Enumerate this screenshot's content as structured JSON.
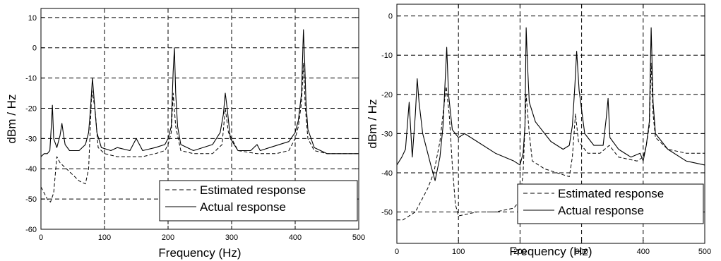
{
  "chart_data": [
    {
      "type": "line",
      "xlabel": "Frequency (Hz)",
      "ylabel": "dBm / Hz",
      "xlim": [
        0,
        500
      ],
      "ylim": [
        -60,
        13
      ],
      "xticks": [
        0,
        100,
        200,
        300,
        400,
        500
      ],
      "yticks": [
        10,
        0,
        -10,
        -20,
        -30,
        -40,
        -50,
        -60
      ],
      "grid": true,
      "legend_position": "bottom-right",
      "series": [
        {
          "name": "Estimated response",
          "style": "dashed",
          "x": [
            0,
            5,
            10,
            15,
            20,
            25,
            30,
            35,
            40,
            50,
            60,
            70,
            75,
            80,
            85,
            90,
            100,
            120,
            140,
            160,
            180,
            195,
            200,
            205,
            208,
            212,
            220,
            240,
            270,
            285,
            290,
            295,
            310,
            340,
            370,
            390,
            400,
            405,
            410,
            413,
            416,
            420,
            430,
            450,
            480,
            500
          ],
          "y": [
            -46,
            -48,
            -50,
            -51,
            -48,
            -36,
            -38,
            -39,
            -40,
            -42,
            -44,
            -45,
            -40,
            -14,
            -20,
            -33,
            -35,
            -36,
            -36,
            -36,
            -35,
            -34,
            -32,
            -28,
            -15,
            -26,
            -34,
            -35,
            -35,
            -32,
            -20,
            -28,
            -34,
            -35,
            -35,
            -34,
            -30,
            -26,
            -18,
            -5,
            -20,
            -30,
            -34,
            -35,
            -35,
            -35
          ]
        },
        {
          "name": "Actual response",
          "style": "solid",
          "x": [
            0,
            5,
            10,
            14,
            16,
            18,
            20,
            25,
            30,
            33,
            35,
            38,
            45,
            60,
            70,
            75,
            78,
            81,
            84,
            88,
            95,
            110,
            120,
            140,
            150,
            160,
            180,
            195,
            200,
            205,
            208,
            210,
            212,
            215,
            220,
            240,
            270,
            282,
            287,
            290,
            293,
            298,
            310,
            330,
            340,
            345,
            360,
            390,
            400,
            405,
            410,
            413,
            415,
            417,
            420,
            430,
            450,
            480,
            500
          ],
          "y": [
            -36,
            -35,
            -35,
            -34,
            -27,
            -19,
            -30,
            -33,
            -29,
            -25,
            -28,
            -32,
            -34,
            -34,
            -32,
            -28,
            -20,
            -10,
            -18,
            -28,
            -33,
            -34,
            -33,
            -34,
            -30,
            -34,
            -33,
            -32,
            -30,
            -26,
            -8,
            0,
            -15,
            -26,
            -32,
            -34,
            -32,
            -28,
            -22,
            -15,
            -20,
            -30,
            -34,
            -34,
            -32,
            -34,
            -33,
            -31,
            -28,
            -24,
            -15,
            6,
            -5,
            -18,
            -27,
            -33,
            -35,
            -35,
            -35
          ]
        }
      ]
    },
    {
      "type": "line",
      "xlabel": "Frequency (Hz)",
      "ylabel": "dBm / Hz",
      "xlim": [
        0,
        500
      ],
      "ylim": [
        -58,
        3
      ],
      "xticks": [
        0,
        100,
        200,
        300,
        400,
        500
      ],
      "yticks": [
        0,
        -10,
        -20,
        -30,
        -40,
        -50
      ],
      "grid": true,
      "legend_position": "bottom-right",
      "series": [
        {
          "name": "Estimated response",
          "style": "dashed",
          "x": [
            0,
            10,
            20,
            30,
            40,
            50,
            60,
            70,
            75,
            80,
            85,
            90,
            95,
            100,
            130,
            160,
            190,
            200,
            205,
            210,
            215,
            220,
            240,
            260,
            280,
            285,
            290,
            295,
            300,
            310,
            330,
            345,
            360,
            390,
            400,
            405,
            410,
            413,
            416,
            420,
            440,
            470,
            500
          ],
          "y": [
            -52,
            -52,
            -51,
            -50,
            -47,
            -44,
            -40,
            -32,
            -25,
            -18,
            -25,
            -38,
            -48,
            -51,
            -50,
            -50,
            -49,
            -47,
            -40,
            -20,
            -30,
            -37,
            -39,
            -40,
            -41,
            -36,
            -25,
            -32,
            -33,
            -35,
            -35,
            -33,
            -36,
            -37,
            -36,
            -33,
            -28,
            -12,
            -25,
            -31,
            -34,
            -35,
            -35
          ]
        },
        {
          "name": "Actual response",
          "style": "solid",
          "x": [
            0,
            8,
            14,
            17,
            20,
            25,
            30,
            33,
            36,
            42,
            55,
            62,
            70,
            75,
            78,
            81,
            84,
            90,
            100,
            110,
            130,
            160,
            190,
            200,
            205,
            208,
            210,
            212,
            215,
            225,
            250,
            270,
            280,
            285,
            289,
            292,
            296,
            305,
            320,
            335,
            340,
            343,
            346,
            360,
            380,
            395,
            400,
            405,
            410,
            413,
            416,
            420,
            440,
            470,
            500
          ],
          "y": [
            -38,
            -36,
            -34,
            -28,
            -22,
            -36,
            -25,
            -16,
            -22,
            -30,
            -38,
            -42,
            -36,
            -28,
            -18,
            -8,
            -20,
            -29,
            -31,
            -30,
            -32,
            -35,
            -37,
            -38,
            -35,
            -28,
            -3,
            -12,
            -22,
            -27,
            -32,
            -34,
            -33,
            -28,
            -18,
            -9,
            -19,
            -30,
            -33,
            -33,
            -26,
            -21,
            -31,
            -34,
            -36,
            -35,
            -37,
            -33,
            -27,
            -3,
            -22,
            -30,
            -34,
            -37,
            -38
          ]
        }
      ]
    }
  ]
}
